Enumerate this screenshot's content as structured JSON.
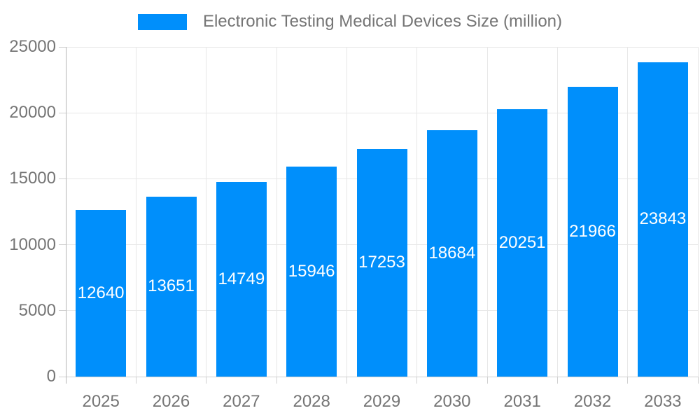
{
  "legend": {
    "label": "Electronic Testing Medical Devices Size (million)"
  },
  "chart_data": {
    "type": "bar",
    "title": "Electronic Testing Medical Devices Size (million)",
    "categories": [
      "2025",
      "2026",
      "2027",
      "2028",
      "2029",
      "2030",
      "2031",
      "2032",
      "2033"
    ],
    "values": [
      12640,
      13651,
      14749,
      15946,
      17253,
      18684,
      20251,
      21966,
      23843
    ],
    "xlabel": "",
    "ylabel": "",
    "ylim": [
      0,
      25000
    ],
    "yticks": [
      0,
      5000,
      10000,
      15000,
      20000,
      25000
    ],
    "grid": true,
    "legend_position": "top",
    "value_labels": "inside-center"
  },
  "colors": {
    "bar": "#008FFB",
    "bar_label": "#ffffff",
    "grid": "#e7e7e7",
    "axis_line": "#b5b5b5",
    "tick": "#cfcfcf",
    "text": "#757575",
    "background": "#ffffff"
  }
}
